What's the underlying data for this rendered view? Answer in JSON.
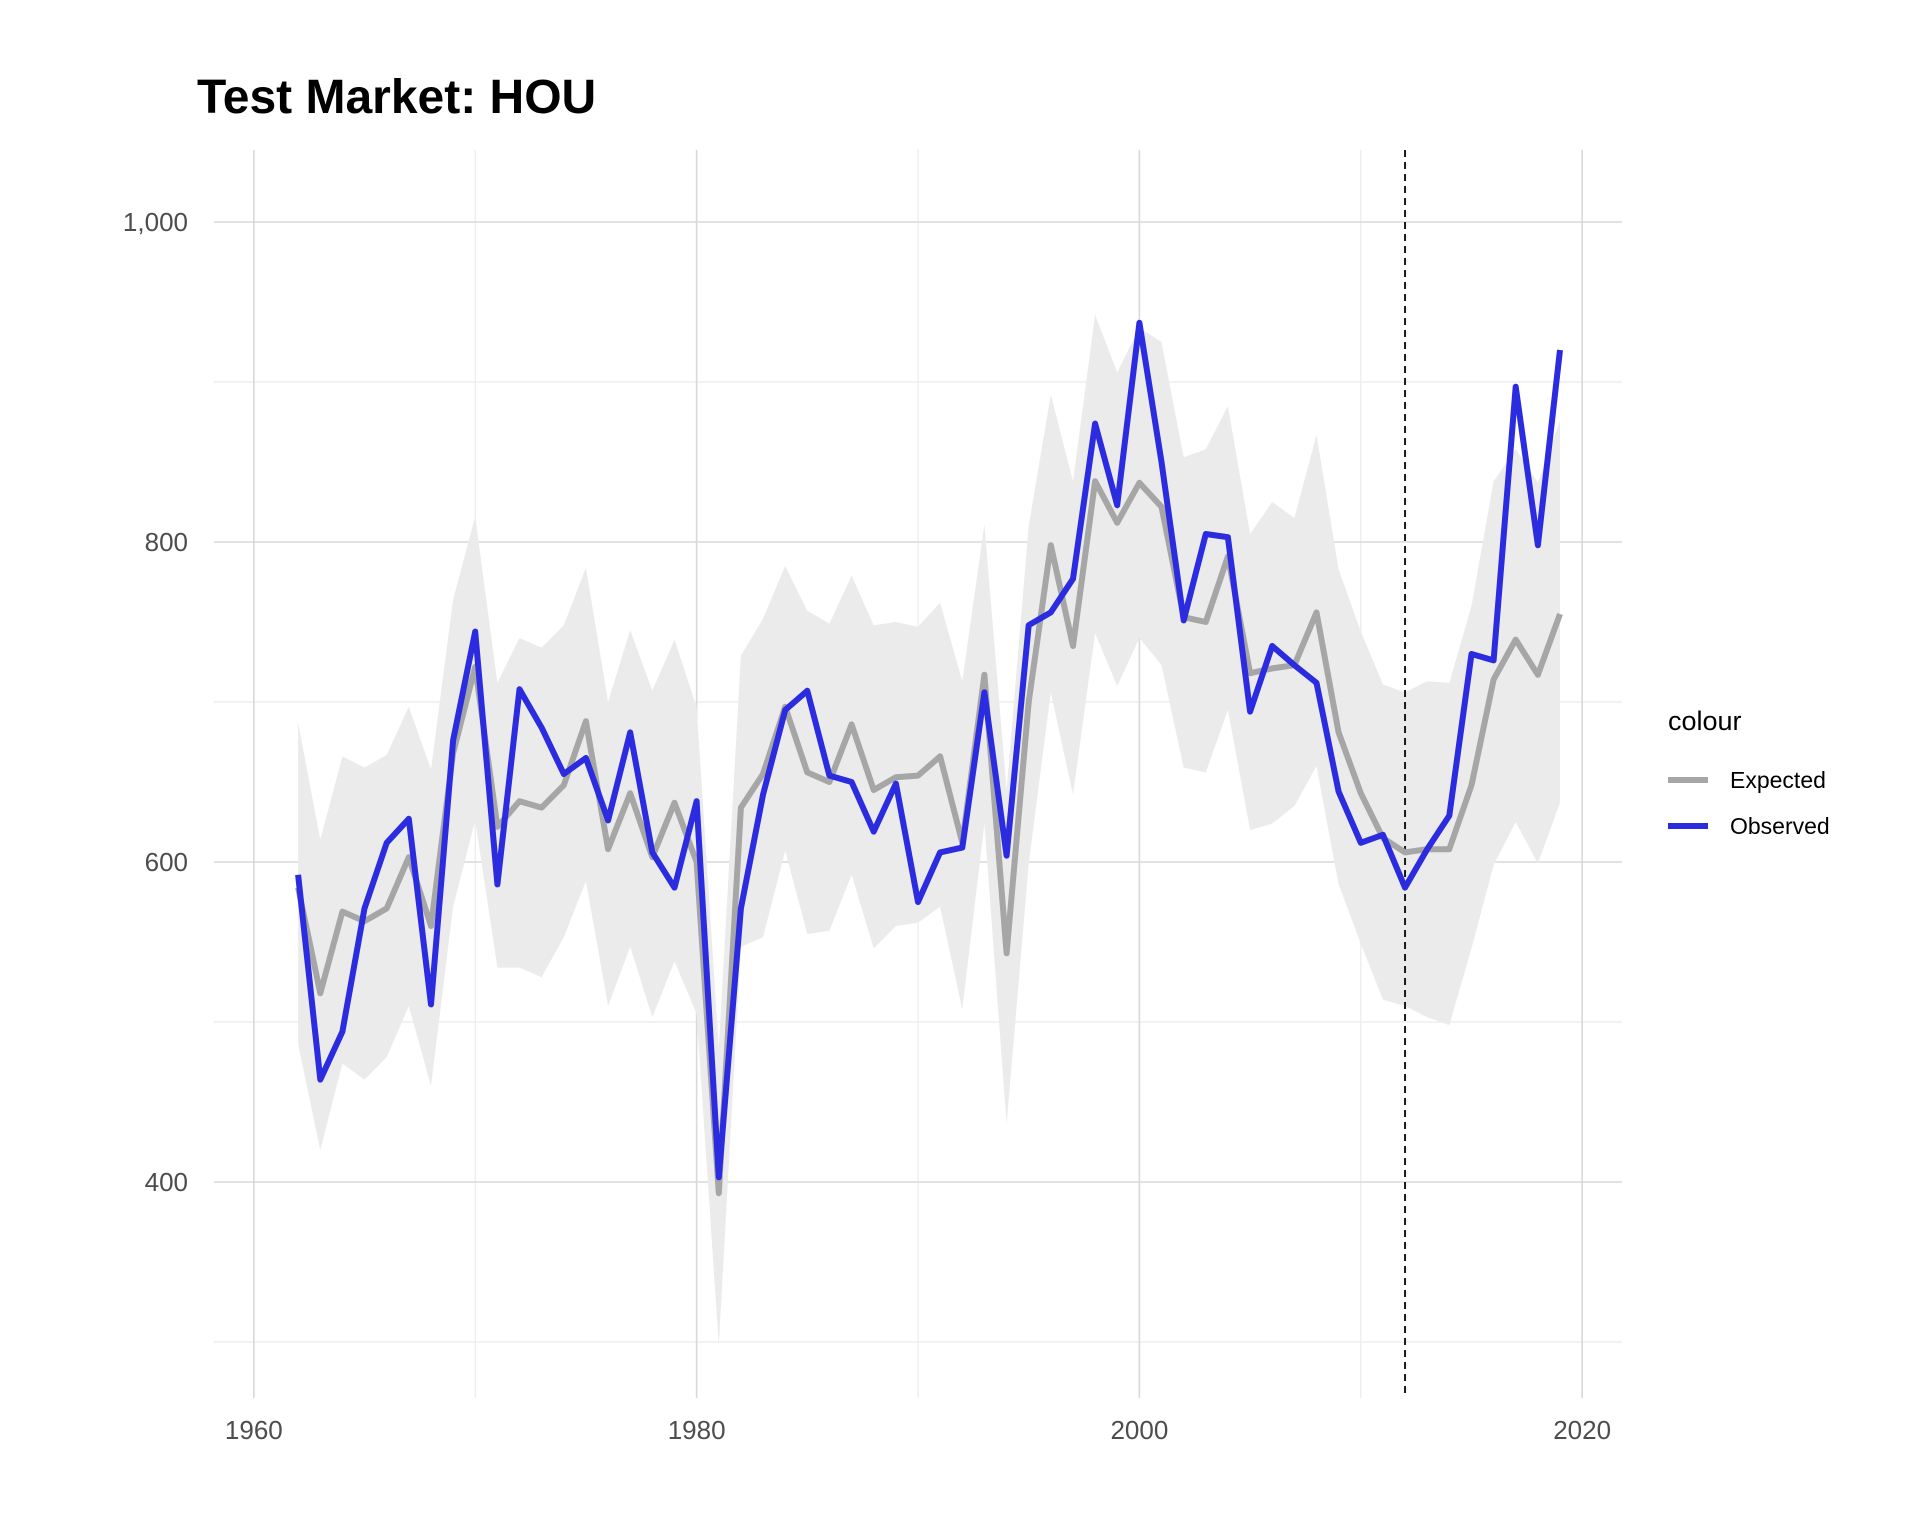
{
  "chart_data": {
    "type": "line",
    "title": "Test Market: HOU",
    "xlabel": "",
    "ylabel": "",
    "xlim": [
      1958.2,
      2021.8
    ],
    "ylim": [
      265,
      1045
    ],
    "x_ticks": [
      1960,
      1980,
      2000,
      2020
    ],
    "x_tick_labels": [
      "1960",
      "1980",
      "2000",
      "2020"
    ],
    "x_minor_gridlines": [
      1970,
      1990,
      2010
    ],
    "y_ticks": [
      400,
      600,
      800,
      1000
    ],
    "y_tick_labels": [
      "400",
      "600",
      "800",
      "1,000"
    ],
    "y_minor_gridlines": [
      300,
      500,
      700,
      900
    ],
    "grid": true,
    "intervention_line": {
      "x": 2012,
      "style": "dashed"
    },
    "legend": {
      "title": "colour",
      "position": "right"
    },
    "x": [
      1962,
      1963,
      1964,
      1965,
      1966,
      1967,
      1968,
      1969,
      1970,
      1971,
      1972,
      1973,
      1974,
      1975,
      1976,
      1977,
      1978,
      1979,
      1980,
      1981,
      1982,
      1983,
      1984,
      1985,
      1986,
      1987,
      1988,
      1989,
      1990,
      1991,
      1992,
      1993,
      1994,
      1995,
      1996,
      1997,
      1998,
      1999,
      2000,
      2001,
      2002,
      2003,
      2004,
      2005,
      2006,
      2007,
      2008,
      2009,
      2010,
      2011,
      2012,
      2013,
      2014,
      2015,
      2016,
      2017,
      2018,
      2019
    ],
    "series": [
      {
        "name": "Expected",
        "color": "#a6a6a6",
        "values": [
          584,
          518,
          569,
          563,
          571,
          603,
          560,
          668,
          722,
          622,
          638,
          634,
          648,
          688,
          608,
          643,
          603,
          637,
          600,
          393,
          634,
          655,
          697,
          656,
          650,
          686,
          645,
          653,
          654,
          666,
          612,
          717,
          543,
          700,
          798,
          735,
          838,
          812,
          837,
          822,
          753,
          750,
          791,
          718,
          721,
          723,
          756,
          681,
          643,
          615,
          606,
          608,
          608,
          648,
          714,
          739,
          717,
          755
        ],
        "lower": [
          486,
          420,
          474,
          464,
          478,
          510,
          460,
          572,
          626,
          534,
          534,
          528,
          553,
          588,
          510,
          547,
          503,
          538,
          505,
          298,
          547,
          553,
          607,
          555,
          557,
          592,
          546,
          560,
          562,
          572,
          508,
          624,
          436,
          599,
          706,
          642,
          743,
          710,
          740,
          723,
          659,
          656,
          695,
          620,
          624,
          635,
          660,
          586,
          549,
          514,
          510,
          503,
          498,
          546,
          598,
          625,
          599,
          637
        ],
        "upper": [
          687,
          614,
          666,
          659,
          667,
          697,
          658,
          764,
          816,
          712,
          740,
          734,
          748,
          784,
          700,
          745,
          707,
          739,
          697,
          484,
          729,
          752,
          785,
          757,
          749,
          779,
          748,
          750,
          747,
          762,
          713,
          811,
          645,
          810,
          892,
          838,
          942,
          906,
          934,
          925,
          853,
          858,
          885,
          805,
          825,
          815,
          867,
          783,
          744,
          711,
          706,
          713,
          712,
          760,
          838,
          858,
          837,
          876
        ]
      },
      {
        "name": "Observed",
        "color": "#2b2be0",
        "values": [
          592,
          464,
          494,
          571,
          612,
          627,
          511,
          676,
          744,
          586,
          708,
          684,
          655,
          665,
          626,
          681,
          606,
          584,
          638,
          403,
          571,
          642,
          695,
          707,
          654,
          650,
          619,
          649,
          575,
          606,
          609,
          706,
          604,
          748,
          756,
          777,
          874,
          823,
          937,
          850,
          751,
          805,
          803,
          694,
          735,
          723,
          712,
          644,
          612,
          617,
          584,
          608,
          629,
          730,
          726,
          897,
          798,
          920
        ]
      }
    ]
  }
}
